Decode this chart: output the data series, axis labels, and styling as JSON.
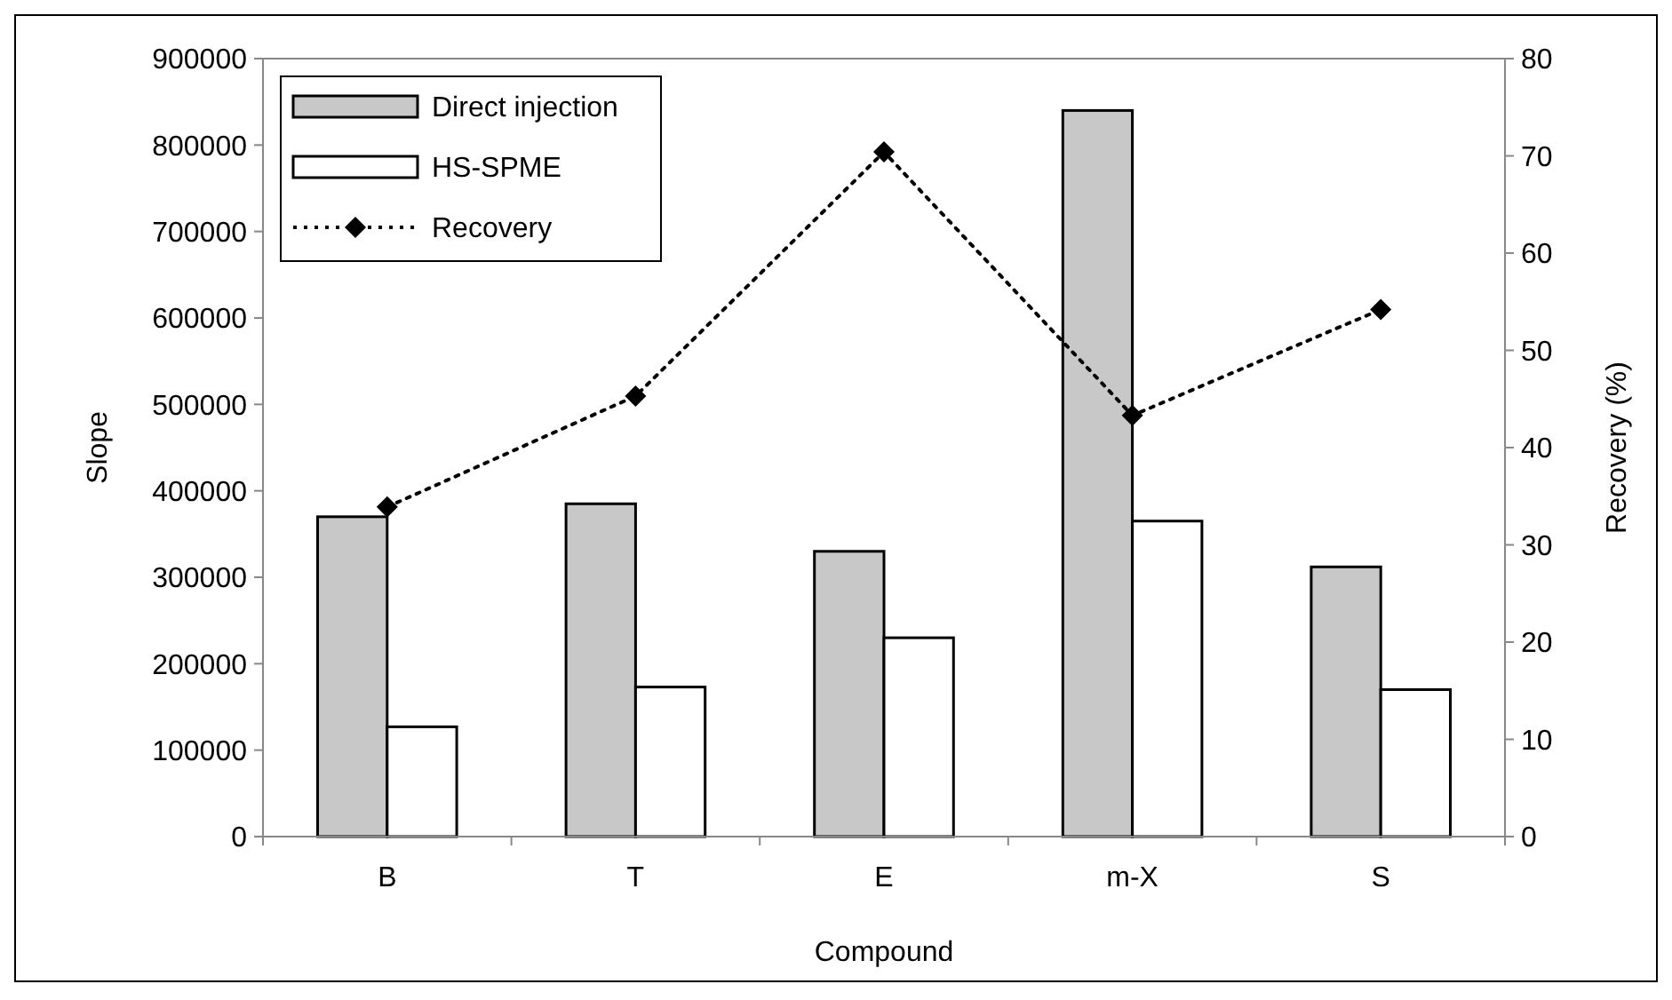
{
  "chart_data": {
    "type": "bar",
    "xlabel": "Compound",
    "ylabel": "Slope",
    "y2label": "Recovery (%)",
    "categories": [
      "B",
      "T",
      "E",
      "m-X",
      "S"
    ],
    "series": [
      {
        "name": "Direct injection",
        "color": "#c8c8c8",
        "values": [
          370000,
          385000,
          330000,
          840000,
          312000
        ]
      },
      {
        "name": "HS-SPME",
        "color": "#ffffff",
        "values": [
          127000,
          173000,
          230000,
          365000,
          170000
        ]
      },
      {
        "name": "Recovery",
        "type": "line",
        "axis": "y2",
        "color": "#000000",
        "marker": "diamond",
        "line_style": "dotted",
        "values": [
          33.9,
          45.3,
          70.4,
          43.3,
          54.2
        ]
      }
    ],
    "ylim": [
      0,
      900000
    ],
    "yticks": [
      0,
      100000,
      200000,
      300000,
      400000,
      500000,
      600000,
      700000,
      800000,
      900000
    ],
    "y2lim": [
      0,
      80
    ],
    "y2ticks": [
      0,
      10,
      20,
      30,
      40,
      50,
      60,
      70,
      80
    ],
    "grid": false,
    "legend": "top left"
  }
}
